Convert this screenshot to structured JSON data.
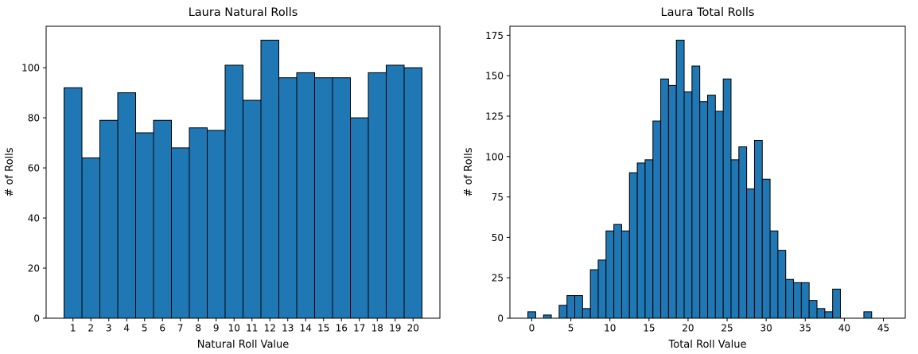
{
  "figure": {
    "background": "#ffffff",
    "bar_fill": "#1f77b4",
    "bar_edge": "#000000",
    "axis_color": "#000000"
  },
  "chart_data": [
    {
      "type": "bar",
      "title": "Laura Natural Rolls",
      "xlabel": "Natural Roll Value",
      "ylabel": "# of Rolls",
      "categories": [
        1,
        2,
        3,
        4,
        5,
        6,
        7,
        8,
        9,
        10,
        11,
        12,
        13,
        14,
        15,
        16,
        17,
        18,
        19,
        20
      ],
      "values": [
        92,
        64,
        79,
        90,
        74,
        79,
        68,
        76,
        75,
        101,
        87,
        111,
        96,
        98,
        96,
        96,
        80,
        98,
        101,
        100
      ],
      "xticks": [
        1,
        2,
        3,
        4,
        5,
        6,
        7,
        8,
        9,
        10,
        11,
        12,
        13,
        14,
        15,
        16,
        17,
        18,
        19,
        20
      ],
      "yticks": [
        0,
        20,
        40,
        60,
        80,
        100
      ],
      "xlim": [
        -0.5,
        21.5
      ],
      "ylim": [
        0,
        116.55
      ],
      "bar_width": 1,
      "grid": false,
      "legend": false
    },
    {
      "type": "bar",
      "title": "Laura Total Rolls",
      "xlabel": "Total Roll Value",
      "ylabel": "# of Rolls",
      "categories": [
        0,
        1,
        2,
        3,
        4,
        5,
        6,
        7,
        8,
        9,
        10,
        11,
        12,
        13,
        14,
        15,
        16,
        17,
        18,
        19,
        20,
        21,
        22,
        23,
        24,
        25,
        26,
        27,
        28,
        29,
        30,
        31,
        32,
        33,
        34,
        35,
        36,
        37,
        38,
        39,
        40,
        41,
        42,
        43,
        44,
        45
      ],
      "values": [
        4,
        0,
        2,
        0,
        8,
        14,
        14,
        6,
        30,
        36,
        54,
        58,
        54,
        90,
        96,
        98,
        122,
        148,
        144,
        172,
        140,
        156,
        134,
        138,
        128,
        148,
        98,
        106,
        80,
        110,
        86,
        54,
        42,
        24,
        22,
        22,
        11,
        6,
        4,
        18,
        0,
        0,
        0,
        4,
        0,
        0
      ],
      "xticks": [
        0,
        5,
        10,
        15,
        20,
        25,
        30,
        35,
        40,
        45
      ],
      "yticks": [
        0,
        25,
        50,
        75,
        100,
        125,
        150,
        175
      ],
      "xlim": [
        -2.8,
        47.8
      ],
      "ylim": [
        0,
        180.6
      ],
      "bar_width": 1,
      "grid": false,
      "legend": false
    }
  ]
}
